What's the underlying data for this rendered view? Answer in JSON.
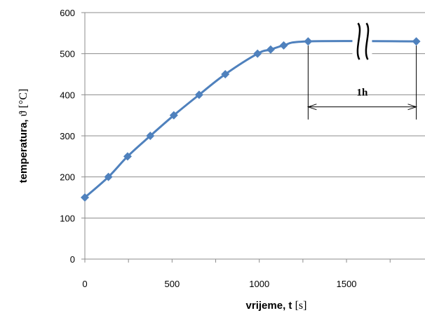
{
  "chart_data": {
    "type": "line",
    "xlabel_main": "vrijeme, t ",
    "xlabel_unit": "[s]",
    "ylabel_main": "temperatura, ",
    "ylabel_symbol": "ϑ",
    "ylabel_unit": " [°C]",
    "xlim": [
      0,
      1950
    ],
    "ylim": [
      0,
      600
    ],
    "x_ticks": [
      0,
      500,
      1000,
      1500
    ],
    "y_ticks": [
      0,
      100,
      200,
      300,
      400,
      500,
      600
    ],
    "grid": "horizontal",
    "legend": "none",
    "series": [
      {
        "color": "#4f81bd",
        "marker": "diamond",
        "x": [
          0,
          135,
          245,
          375,
          510,
          655,
          805,
          990,
          1065,
          1140,
          1280,
          1900
        ],
        "y": [
          150,
          200,
          250,
          300,
          350,
          400,
          450,
          500,
          510,
          520,
          530,
          530
        ]
      }
    ],
    "annotations": {
      "duration_label": "1h",
      "duration_start_x": 1280,
      "duration_end_x": 1900,
      "duration_y": 350,
      "break_x": 1590,
      "break_y": 530
    }
  }
}
